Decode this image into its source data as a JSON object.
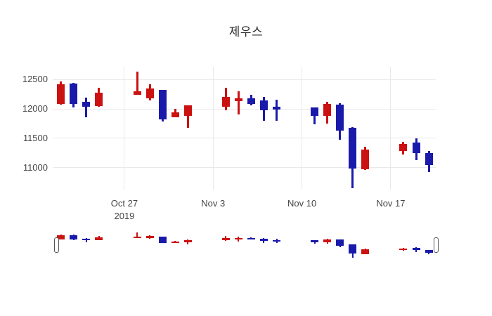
{
  "title": "제우스",
  "colors": {
    "increasing": "#cc1111",
    "decreasing": "#1a1aaa",
    "grid": "#e9e9e9",
    "tick_text": "#444444",
    "title_text": "#2f2f2f",
    "handle_fill": "#ffffff",
    "handle_border": "#555555",
    "background": "#ffffff"
  },
  "chart_data": {
    "type": "candlestick",
    "title": "제우스",
    "x": [
      "2019-10-22",
      "2019-10-23",
      "2019-10-24",
      "2019-10-25",
      "2019-10-28",
      "2019-10-29",
      "2019-10-30",
      "2019-10-31",
      "2019-11-01",
      "2019-11-04",
      "2019-11-05",
      "2019-11-06",
      "2019-11-07",
      "2019-11-08",
      "2019-11-11",
      "2019-11-12",
      "2019-11-13",
      "2019-11-14",
      "2019-11-15",
      "2019-11-18",
      "2019-11-19",
      "2019-11-20"
    ],
    "open": [
      12080,
      12430,
      12120,
      12050,
      12240,
      12180,
      12320,
      11860,
      11880,
      12040,
      12130,
      12175,
      12140,
      12040,
      12020,
      11880,
      12070,
      11680,
      10970,
      11290,
      11425,
      11245
    ],
    "high": [
      12465,
      12445,
      12190,
      12360,
      12630,
      12420,
      12325,
      12000,
      12065,
      12360,
      12300,
      12240,
      12200,
      12160,
      12025,
      12120,
      12100,
      11685,
      11355,
      11445,
      11505,
      11285
    ],
    "low": [
      12070,
      12020,
      11860,
      12040,
      12235,
      12140,
      11790,
      11855,
      11680,
      11980,
      11900,
      12060,
      11800,
      11800,
      11740,
      11755,
      11480,
      10650,
      10965,
      11225,
      11125,
      10930
    ],
    "close": [
      12420,
      12080,
      12030,
      12270,
      12300,
      12340,
      11820,
      11940,
      12060,
      12200,
      12175,
      12085,
      11980,
      11985,
      11880,
      12080,
      11625,
      10990,
      11305,
      11405,
      11250,
      11050
    ],
    "base_date": "2019-10-22",
    "xlim_days": [
      -0.65,
      29.55
    ],
    "ylim": [
      10630,
      12715
    ],
    "grid": true,
    "legend": "none",
    "yticks": [
      {
        "value": 12500,
        "label": "12500"
      },
      {
        "value": 12000,
        "label": "12000"
      },
      {
        "value": 11500,
        "label": "11500"
      },
      {
        "value": 11000,
        "label": "11000"
      }
    ],
    "xticks": [
      {
        "date": "2019-10-27",
        "label": "Oct 27",
        "sublabel": "2019"
      },
      {
        "date": "2019-11-03",
        "label": "Nov 3",
        "sublabel": ""
      },
      {
        "date": "2019-11-10",
        "label": "Nov 10",
        "sublabel": ""
      },
      {
        "date": "2019-11-17",
        "label": "Nov 17",
        "sublabel": ""
      }
    ],
    "rangeslider": {
      "visible": true,
      "ylim": [
        10620,
        12685
      ]
    }
  }
}
